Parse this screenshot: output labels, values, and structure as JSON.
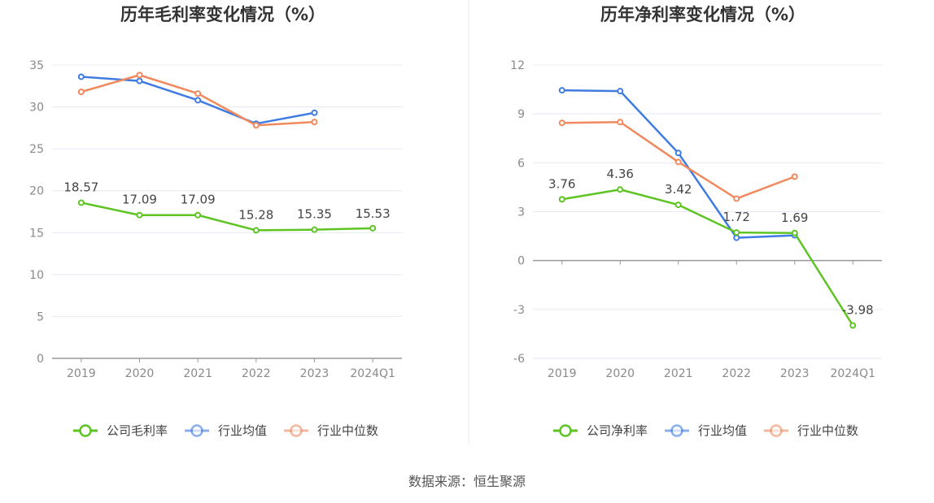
{
  "source": "数据来源：恒生聚源",
  "colors": {
    "company": "#5ec424",
    "avg": "#3f7be0",
    "median": "#f0895d"
  },
  "chart_data": [
    {
      "type": "line",
      "title": "历年毛利率变化情况（%）",
      "categories": [
        "2019",
        "2020",
        "2021",
        "2022",
        "2023",
        "2024Q1"
      ],
      "ylim": [
        0,
        35
      ],
      "yticks": [
        0,
        5,
        10,
        15,
        20,
        25,
        30,
        35
      ],
      "grid": true,
      "legend_position": "bottom",
      "series": [
        {
          "name": "公司毛利率",
          "key": "company",
          "values": [
            18.57,
            17.09,
            17.09,
            15.28,
            15.35,
            15.53
          ],
          "labels": [
            "18.57",
            "17.09",
            "17.09",
            "15.28",
            "15.35",
            "15.53"
          ]
        },
        {
          "name": "行业均值",
          "key": "avg",
          "values": [
            33.6,
            33.1,
            30.8,
            28.0,
            29.3,
            null
          ]
        },
        {
          "name": "行业中位数",
          "key": "median",
          "values": [
            31.8,
            33.8,
            31.6,
            27.8,
            28.2,
            null
          ]
        }
      ]
    },
    {
      "type": "line",
      "title": "历年净利率变化情况（%）",
      "categories": [
        "2019",
        "2020",
        "2021",
        "2022",
        "2023",
        "2024Q1"
      ],
      "ylim": [
        -6,
        12
      ],
      "yticks": [
        -6,
        -3,
        0,
        3,
        6,
        9,
        12
      ],
      "grid": true,
      "legend_position": "bottom",
      "series": [
        {
          "name": "公司净利率",
          "key": "company",
          "values": [
            3.76,
            4.36,
            3.42,
            1.72,
            1.69,
            -3.98
          ],
          "labels": [
            "3.76",
            "4.36",
            "3.42",
            "1.72",
            "1.69",
            "-3.98"
          ]
        },
        {
          "name": "行业均值",
          "key": "avg",
          "values": [
            10.45,
            10.4,
            6.6,
            1.4,
            1.55,
            null
          ]
        },
        {
          "name": "行业中位数",
          "key": "median",
          "values": [
            8.45,
            8.5,
            6.05,
            3.8,
            5.15,
            null
          ]
        }
      ]
    }
  ]
}
